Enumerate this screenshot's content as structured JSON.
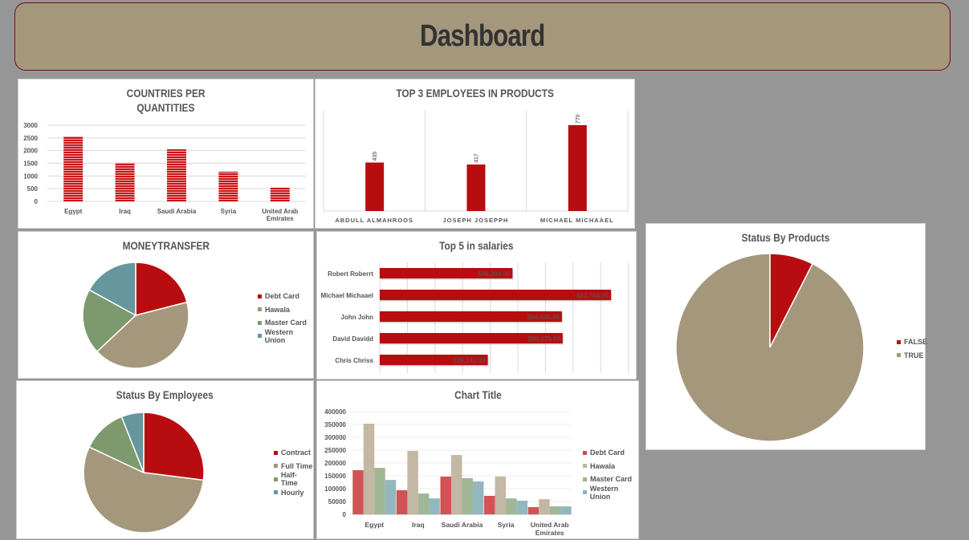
{
  "header": {
    "title": "Dashboard"
  },
  "colors": {
    "red": "#b80d10",
    "tan": "#a5977c",
    "green": "#7d9a6e",
    "teal": "#66969e",
    "background": "#969696",
    "header_bg": "#a5977c"
  },
  "panels": {
    "countries": {
      "title_line1": "COUNTRIES PER",
      "title_line2": "QUANTITIES"
    },
    "top3": {
      "title": "TOP 3 EMPLOYEES IN PRODUCTS"
    },
    "moneytransfer": {
      "title": "MONEYTRANSFER",
      "legend": [
        "Debt Card",
        "Hawala",
        "Master Card",
        "Western Union"
      ]
    },
    "salaries": {
      "title": "Top 5 in salaries"
    },
    "status_products": {
      "title": "Status By Products",
      "legend": [
        "FALSE",
        "TRUE"
      ]
    },
    "status_employees": {
      "title": "Status By Employees",
      "legend": [
        "Contract",
        "Full Time",
        "Half-Time",
        "Hourly"
      ]
    },
    "grouped": {
      "title": "Chart Title",
      "legend": [
        "Debt Card",
        "Hawala",
        "Master Card",
        "Western Union"
      ]
    }
  },
  "chart_data": [
    {
      "type": "bar",
      "title": "COUNTRIES PER QUANTITIES",
      "categories": [
        "Egypt",
        "Iraq",
        "Saudi Arabia",
        "Syria",
        "United Arab Emirates"
      ],
      "values": [
        2560,
        1520,
        2050,
        1170,
        540
      ],
      "yticks": [
        "0",
        "500",
        "1000",
        "1500",
        "2000",
        "2500",
        "3000"
      ],
      "ylim": [
        0,
        3000
      ],
      "grid": true
    },
    {
      "type": "bar",
      "title": "TOP 3 EMPLOYEES IN PRODUCTS",
      "categories": [
        "ABDULL ALMAHROOS",
        "JOSEPH JOSEPPH",
        "MICHAEL MICHAAEL"
      ],
      "values": [
        435,
        417,
        770
      ],
      "labels": [
        "435",
        "417",
        "770"
      ]
    },
    {
      "type": "pie",
      "title": "MONEYTRANSFER",
      "labels": [
        "Debt Card",
        "Hawala",
        "Master Card",
        "Western Union"
      ],
      "values": [
        21,
        42,
        20,
        17
      ],
      "legend_position": "right"
    },
    {
      "type": "bar",
      "orientation": "horizontal",
      "title": "Top 5 in salaries",
      "categories": [
        "Robert Roberrt",
        "Michael Michaael",
        "John John",
        "David Davidd",
        "Chris Chriss"
      ],
      "values": [
        48100,
        83784,
        66000,
        66275,
        39142
      ],
      "labels": [
        "$48,100.00",
        "$83,784.00",
        "$66,000.00",
        "$66,275.00",
        "$39,142.00"
      ],
      "xlim": [
        0,
        90000
      ],
      "grid": true
    },
    {
      "type": "pie",
      "title": "Status By Products",
      "labels": [
        "FALSE",
        "TRUE"
      ],
      "values": [
        7.5,
        92.5
      ],
      "legend_position": "right"
    },
    {
      "type": "pie",
      "title": "Status By Employees",
      "labels": [
        "Contract",
        "Full Time",
        "Half-Time",
        "Hourly"
      ],
      "values": [
        27,
        55,
        12,
        6
      ],
      "legend_position": "right"
    },
    {
      "type": "bar",
      "title": "Chart Title",
      "categories": [
        "Egypt",
        "Iraq",
        "Saudi Arabia",
        "Syria",
        "United Arab Emirates"
      ],
      "series": [
        {
          "name": "Debt Card",
          "values": [
            172000,
            94000,
            147000,
            72000,
            28000
          ]
        },
        {
          "name": "Hawala",
          "values": [
            353000,
            247000,
            231000,
            147000,
            59000
          ]
        },
        {
          "name": "Master Card",
          "values": [
            181000,
            81000,
            141000,
            62000,
            31000
          ]
        },
        {
          "name": "Western Union",
          "values": [
            134000,
            62000,
            128000,
            53000,
            31000
          ]
        }
      ],
      "yticks": [
        "0",
        "50000",
        "100000",
        "150000",
        "200000",
        "250000",
        "300000",
        "350000",
        "400000"
      ],
      "ylim": [
        0,
        400000
      ],
      "legend_position": "right",
      "grid": true
    }
  ]
}
